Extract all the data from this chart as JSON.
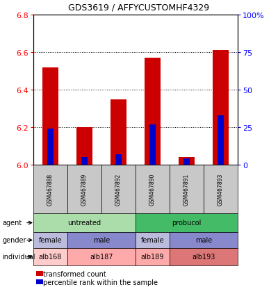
{
  "title": "GDS3619 / AFFYCUSTOMHF4329",
  "samples": [
    "GSM467888",
    "GSM467889",
    "GSM467892",
    "GSM467890",
    "GSM467891",
    "GSM467893"
  ],
  "red_values": [
    6.52,
    6.2,
    6.35,
    6.57,
    6.04,
    6.61
  ],
  "blue_percentiles": [
    24,
    5,
    7,
    27,
    4,
    33
  ],
  "ylim_left": [
    6.0,
    6.8
  ],
  "ylim_right": [
    0,
    100
  ],
  "yticks_left": [
    6.0,
    6.2,
    6.4,
    6.6,
    6.8
  ],
  "yticks_right": [
    0,
    25,
    50,
    75,
    100
  ],
  "agent_groups": [
    {
      "label": "untreated",
      "cols": [
        0,
        1,
        2
      ],
      "color": "#aaddaa"
    },
    {
      "label": "probucol",
      "cols": [
        3,
        4,
        5
      ],
      "color": "#44bb66"
    }
  ],
  "gender_groups": [
    {
      "label": "female",
      "cols": [
        0
      ],
      "color": "#bbbbdd"
    },
    {
      "label": "male",
      "cols": [
        1,
        2
      ],
      "color": "#8888cc"
    },
    {
      "label": "female",
      "cols": [
        3
      ],
      "color": "#bbbbdd"
    },
    {
      "label": "male",
      "cols": [
        4,
        5
      ],
      "color": "#8888cc"
    }
  ],
  "individual_groups": [
    {
      "label": "alb168",
      "cols": [
        0
      ],
      "color": "#ffcccc"
    },
    {
      "label": "alb187",
      "cols": [
        1,
        2
      ],
      "color": "#ffaaaa"
    },
    {
      "label": "alb189",
      "cols": [
        3
      ],
      "color": "#ffaaaa"
    },
    {
      "label": "alb193",
      "cols": [
        4,
        5
      ],
      "color": "#dd7777"
    }
  ],
  "red_color": "#cc0000",
  "blue_color": "#0000cc",
  "sample_bg": "#c8c8c8",
  "legend_red": "transformed count",
  "legend_blue": "percentile rank within the sample"
}
